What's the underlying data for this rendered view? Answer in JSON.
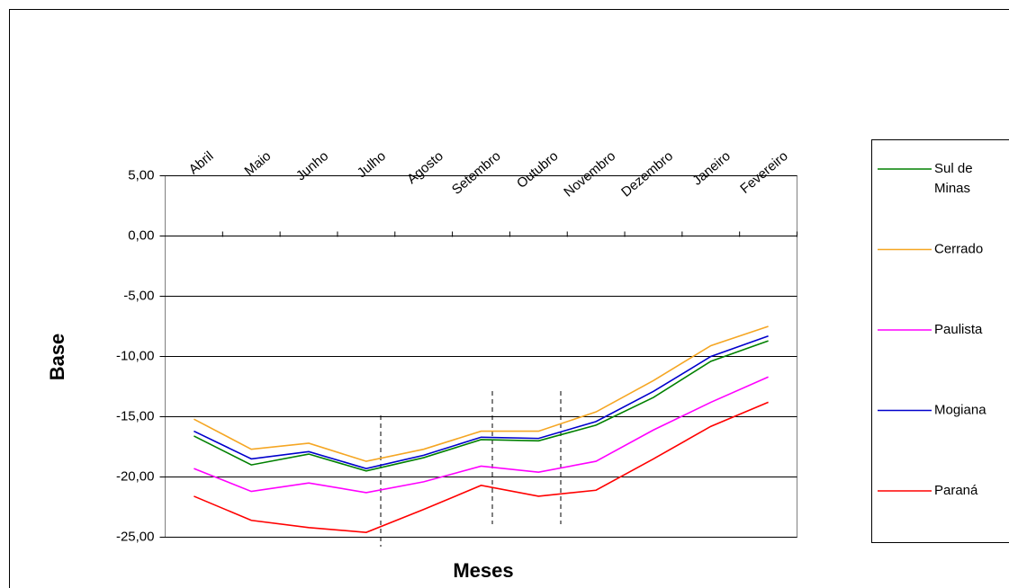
{
  "chart_data": {
    "type": "line",
    "x_label": "Meses",
    "y_label": "Base",
    "categories": [
      "Abril",
      "Maio",
      "Junho",
      "Julho",
      "Agosto",
      "Setembro",
      "Outubro",
      "Novembro",
      "Dezembro",
      "Janeiro",
      "Fevereiro"
    ],
    "ylim": [
      -25,
      5
    ],
    "yticks": [
      {
        "value": 5,
        "label": "5,00"
      },
      {
        "value": 0,
        "label": "0,00"
      },
      {
        "value": -5,
        "label": "-5,00"
      },
      {
        "value": -10,
        "label": "-10,00"
      },
      {
        "value": -15,
        "label": "-15,00"
      },
      {
        "value": -20,
        "label": "-20,00"
      },
      {
        "value": -25,
        "label": "-25,00"
      }
    ],
    "grid": true,
    "series": [
      {
        "name": "Sul de Minas",
        "color": "#008000",
        "values": [
          -16.6,
          -19.0,
          -18.1,
          -19.5,
          -18.4,
          -16.9,
          -17.0,
          -15.7,
          -13.4,
          -10.4,
          -8.7
        ]
      },
      {
        "name": "Cerrado",
        "color": "#f5a623",
        "values": [
          -15.2,
          -17.7,
          -17.2,
          -18.7,
          -17.7,
          -16.2,
          -16.2,
          -14.6,
          -12.0,
          -9.1,
          -7.5
        ]
      },
      {
        "name": "Paulista",
        "color": "#ff00ff",
        "values": [
          -19.3,
          -21.2,
          -20.5,
          -21.3,
          -20.4,
          -19.1,
          -19.6,
          -18.7,
          -16.1,
          -13.8,
          -11.7
        ]
      },
      {
        "name": "Mogiana",
        "color": "#0000cc",
        "values": [
          -16.2,
          -18.5,
          -17.9,
          -19.3,
          -18.2,
          -16.7,
          -16.8,
          -15.4,
          -12.9,
          -10.0,
          -8.3
        ]
      },
      {
        "name": "Paraná",
        "color": "#ff0000",
        "values": [
          -21.6,
          -23.6,
          -24.2,
          -24.6,
          -22.7,
          -20.7,
          -21.6,
          -21.1,
          -18.5,
          -15.8,
          -13.8
        ]
      }
    ]
  }
}
